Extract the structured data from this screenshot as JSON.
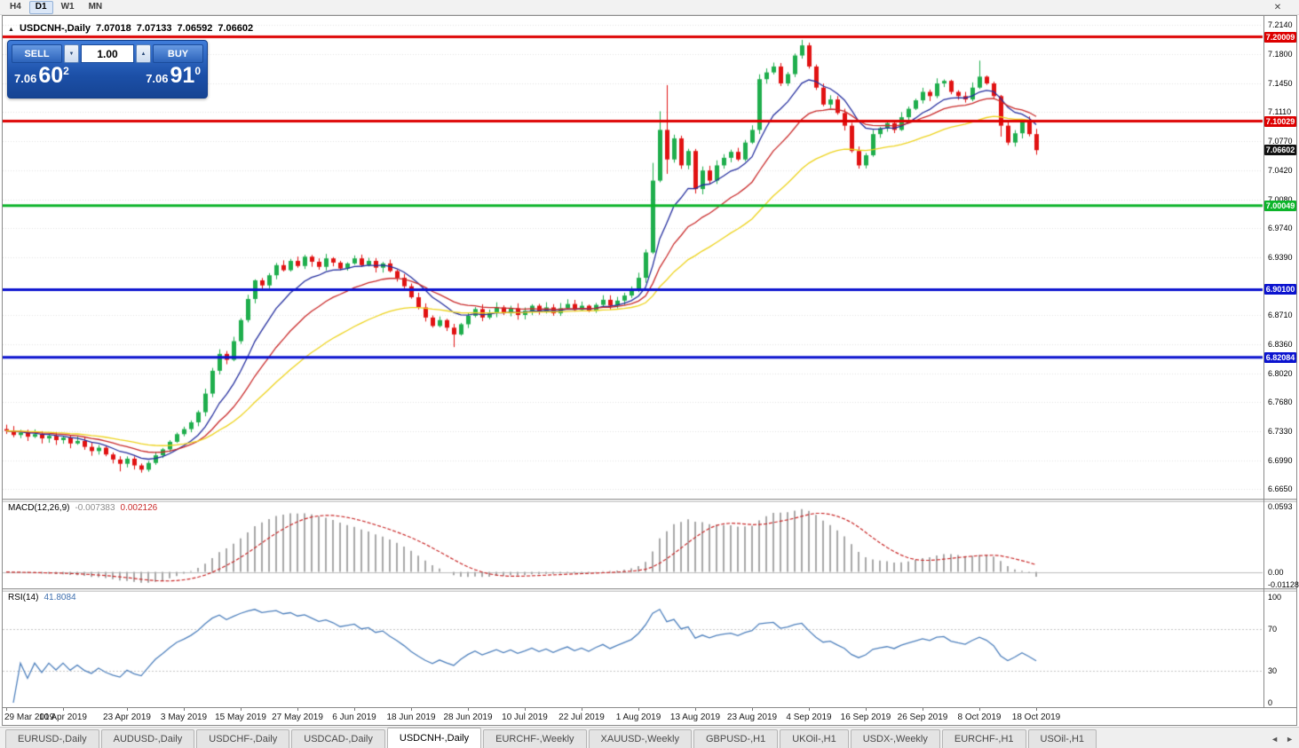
{
  "toolbar": {
    "timeframes": [
      {
        "label": "H4",
        "active": false
      },
      {
        "label": "D1",
        "active": true
      },
      {
        "label": "W1",
        "active": false
      },
      {
        "label": "MN",
        "active": false
      }
    ]
  },
  "icons": {
    "close": "✕",
    "collapse": "▲",
    "spin_up": "▲",
    "spin_down": "▼",
    "tab_prev": "◄",
    "tab_next": "►"
  },
  "window": {
    "title": "USDCNH-,Daily",
    "ohlc": {
      "open": "7.07018",
      "high": "7.07133",
      "low": "7.06592",
      "close": "7.06602"
    }
  },
  "trade_panel": {
    "sell_label": "SELL",
    "buy_label": "BUY",
    "volume": "1.00",
    "sell_price": {
      "prefix": "7.06",
      "big": "60",
      "sup": "2"
    },
    "buy_price": {
      "prefix": "7.06",
      "big": "91",
      "sup": "0"
    }
  },
  "price_scale": {
    "ticks": [
      "7.2140",
      "7.1800",
      "7.1450",
      "7.1110",
      "7.0770",
      "7.0420",
      "7.0080",
      "6.9740",
      "6.9390",
      "6.8710",
      "6.8360",
      "6.8020",
      "6.7680",
      "6.7330",
      "6.6990",
      "6.6650"
    ],
    "badges": [
      {
        "label": "7.20009",
        "value": 7.20009,
        "color": "#dd0000",
        "kind": "line"
      },
      {
        "label": "7.10029",
        "value": 7.10029,
        "color": "#dd0000",
        "kind": "line"
      },
      {
        "label": "7.06602",
        "value": 7.06602,
        "color": "#111111",
        "kind": "current"
      },
      {
        "label": "7.00049",
        "value": 7.00049,
        "color": "#0cb42a",
        "kind": "line"
      },
      {
        "label": "6.90100",
        "value": 6.901,
        "color": "#0b13cf",
        "kind": "line"
      },
      {
        "label": "6.82084",
        "value": 6.82084,
        "color": "#0b13cf",
        "kind": "line"
      }
    ]
  },
  "hlines": [
    {
      "value": 7.20009,
      "color": "#dd0000",
      "width": 3
    },
    {
      "value": 7.10029,
      "color": "#dd0000",
      "width": 3
    },
    {
      "value": 7.00049,
      "color": "#0cb42a",
      "width": 3
    },
    {
      "value": 6.901,
      "color": "#0b13cf",
      "width": 3
    },
    {
      "value": 6.82084,
      "color": "#0b13cf",
      "width": 3
    }
  ],
  "chart_data": {
    "type": "candlestick",
    "symbol": "USDCNH",
    "period": "Daily",
    "ylim": [
      6.66,
      7.2185
    ],
    "up_color": "#1fae4d",
    "down_color": "#e11212",
    "first_open": 6.736,
    "closes": [
      6.734,
      6.729,
      6.732,
      6.727,
      6.73,
      6.725,
      6.728,
      6.723,
      6.726,
      6.719,
      6.722,
      6.715,
      6.71,
      6.714,
      6.706,
      6.7,
      6.695,
      6.701,
      6.693,
      6.688,
      6.696,
      6.705,
      6.712,
      6.721,
      6.73,
      6.736,
      6.744,
      6.756,
      6.778,
      6.805,
      6.825,
      6.818,
      6.84,
      6.865,
      6.89,
      6.912,
      6.906,
      6.918,
      6.93,
      6.924,
      6.935,
      6.929,
      6.94,
      6.934,
      6.928,
      6.938,
      6.933,
      6.926,
      6.932,
      6.938,
      6.93,
      6.935,
      6.927,
      6.932,
      6.923,
      6.915,
      6.905,
      6.892,
      6.88,
      6.868,
      6.858,
      6.865,
      6.856,
      6.848,
      6.86,
      6.87,
      6.878,
      6.868,
      6.874,
      6.88,
      6.873,
      6.879,
      6.871,
      6.876,
      6.882,
      6.875,
      6.88,
      6.873,
      6.879,
      6.884,
      6.877,
      6.882,
      6.876,
      6.883,
      6.889,
      6.882,
      6.888,
      6.894,
      6.9,
      6.915,
      6.945,
      7.03,
      7.09,
      7.055,
      7.08,
      7.048,
      7.065,
      7.02,
      7.042,
      7.03,
      7.048,
      7.057,
      7.064,
      7.055,
      7.075,
      7.09,
      7.15,
      7.158,
      7.165,
      7.145,
      7.156,
      7.178,
      7.19,
      7.165,
      7.14,
      7.12,
      7.126,
      7.11,
      7.095,
      7.065,
      7.048,
      7.06,
      7.085,
      7.092,
      7.098,
      7.09,
      7.105,
      7.115,
      7.125,
      7.135,
      7.13,
      7.145,
      7.148,
      7.135,
      7.13,
      7.126,
      7.14,
      7.153,
      7.145,
      7.13,
      7.095,
      7.075,
      7.086,
      7.1,
      7.085,
      7.06602
    ],
    "wick_overrides": {
      "16": {
        "low": 6.686
      },
      "19": {
        "low": 6.6845
      },
      "63": {
        "low": 6.833
      },
      "91": {
        "high": 7.051
      },
      "92": {
        "high": 7.112
      },
      "93": {
        "high": 7.143,
        "low": 7.038
      },
      "112": {
        "high": 7.1965
      },
      "137": {
        "high": 7.172
      },
      "140": {
        "low": 7.082
      }
    },
    "ma_lines": [
      {
        "period": 9,
        "color": "#242e9e"
      },
      {
        "period": 18,
        "color": "#c92a2a"
      },
      {
        "period": 35,
        "color": "#edd31e"
      }
    ],
    "x_labels": [
      {
        "label": "29 Mar 2019",
        "index": 0
      },
      {
        "label": "10 Apr 2019",
        "index": 8
      },
      {
        "label": "23 Apr 2019",
        "index": 17
      },
      {
        "label": "3 May 2019",
        "index": 25
      },
      {
        "label": "15 May 2019",
        "index": 33
      },
      {
        "label": "27 May 2019",
        "index": 41
      },
      {
        "label": "6 Jun 2019",
        "index": 49
      },
      {
        "label": "18 Jun 2019",
        "index": 57
      },
      {
        "label": "28 Jun 2019",
        "index": 65
      },
      {
        "label": "10 Jul 2019",
        "index": 73
      },
      {
        "label": "22 Jul 2019",
        "index": 81
      },
      {
        "label": "1 Aug 2019",
        "index": 89
      },
      {
        "label": "13 Aug 2019",
        "index": 97
      },
      {
        "label": "23 Aug 2019",
        "index": 105
      },
      {
        "label": "4 Sep 2019",
        "index": 113
      },
      {
        "label": "16 Sep 2019",
        "index": 121
      },
      {
        "label": "26 Sep 2019",
        "index": 129
      },
      {
        "label": "8 Oct 2019",
        "index": 137
      },
      {
        "label": "18 Oct 2019",
        "index": 145
      }
    ],
    "macd": {
      "label": "MACD(12,26,9)",
      "value_main": "-0.007383",
      "value_signal": "0.002126",
      "axis_top": "0.0593",
      "axis_zero": "0.00",
      "axis_bottom": "-0.011289",
      "hist_color": "#a8a8a8",
      "signal_color": "#c92a2a"
    },
    "rsi": {
      "label": "RSI(14)",
      "value": "41.8084",
      "axis": [
        "100",
        "70",
        "30",
        "0"
      ],
      "axis_values": [
        100,
        70,
        30,
        0
      ],
      "levels": [
        70,
        30
      ],
      "line_color": "#4f81bd"
    }
  },
  "tabs": {
    "items": [
      {
        "label": "EURUSD-,Daily",
        "active": false
      },
      {
        "label": "AUDUSD-,Daily",
        "active": false
      },
      {
        "label": "USDCHF-,Daily",
        "active": false
      },
      {
        "label": "USDCAD-,Daily",
        "active": false
      },
      {
        "label": "USDCNH-,Daily",
        "active": true
      },
      {
        "label": "EURCHF-,Weekly",
        "active": false
      },
      {
        "label": "XAUUSD-,Weekly",
        "active": false
      },
      {
        "label": "GBPUSD-,H1",
        "active": false
      },
      {
        "label": "UKOil-,H1",
        "active": false
      },
      {
        "label": "USDX-,Weekly",
        "active": false
      },
      {
        "label": "EURCHF-,H1",
        "active": false
      },
      {
        "label": "USOil-,H1",
        "active": false
      }
    ]
  }
}
